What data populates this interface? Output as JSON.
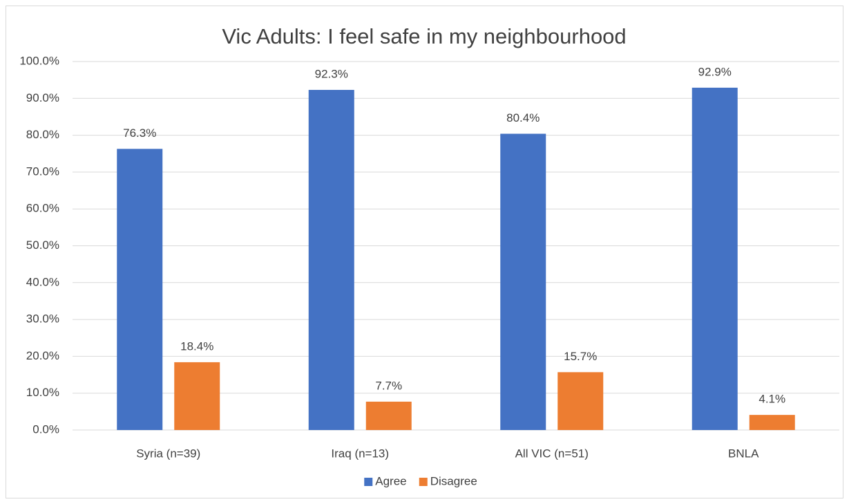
{
  "chart_data": {
    "type": "bar",
    "title": "Vic Adults: I feel safe in my neighbourhood",
    "categories": [
      "Syria (n=39)",
      "Iraq (n=13)",
      "All VIC (n=51)",
      "BNLA"
    ],
    "series": [
      {
        "name": "Agree",
        "color": "#4472c4",
        "values": [
          76.3,
          92.3,
          80.4,
          92.9
        ],
        "value_labels": [
          "76.3%",
          "92.3%",
          "80.4%",
          "92.9%"
        ]
      },
      {
        "name": "Disagree",
        "color": "#ed7d31",
        "values": [
          18.4,
          7.7,
          15.7,
          4.1
        ],
        "value_labels": [
          "18.4%",
          "7.7%",
          "15.7%",
          "4.1%"
        ]
      }
    ],
    "ylim": [
      0,
      100
    ],
    "yticks": [
      {
        "value": 0,
        "label": "0.0%"
      },
      {
        "value": 10,
        "label": "10.0%"
      },
      {
        "value": 20,
        "label": "20.0%"
      },
      {
        "value": 30,
        "label": "30.0%"
      },
      {
        "value": 40,
        "label": "40.0%"
      },
      {
        "value": 50,
        "label": "50.0%"
      },
      {
        "value": 60,
        "label": "60.0%"
      },
      {
        "value": 70,
        "label": "70.0%"
      },
      {
        "value": 80,
        "label": "80.0%"
      },
      {
        "value": 90,
        "label": "90.0%"
      },
      {
        "value": 100,
        "label": "100.0%"
      }
    ],
    "grid": true,
    "legend": "bottom"
  }
}
